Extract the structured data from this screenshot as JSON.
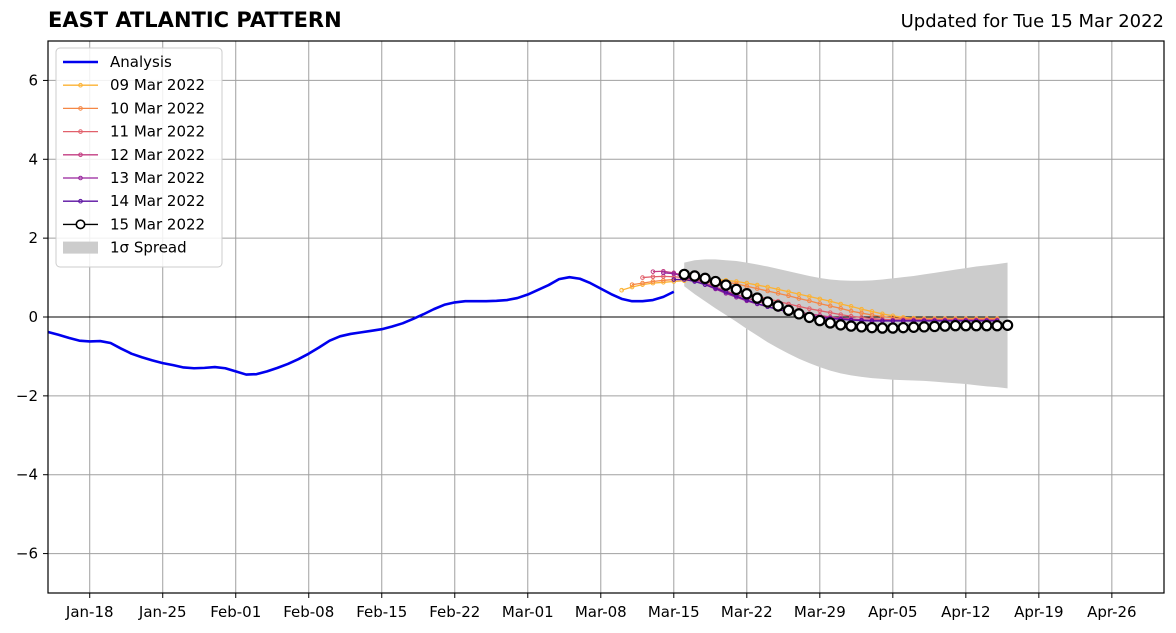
{
  "header": {
    "title": "EAST ATLANTIC PATTERN",
    "updated": "Updated for Tue 15 Mar 2022"
  },
  "chart_data": {
    "type": "line",
    "title": "EAST ATLANTIC PATTERN",
    "subtitle": "Updated for Tue 15 Mar 2022",
    "xlabel": "",
    "ylabel": "",
    "ylim": [
      -7,
      7
    ],
    "xlim": [
      "2022-01-14",
      "2022-05-01"
    ],
    "yticks": [
      -6,
      -4,
      -2,
      0,
      2,
      4,
      6
    ],
    "ytick_labels": [
      "−6",
      "−4",
      "−2",
      "0",
      "2",
      "4",
      "6"
    ],
    "xticks": [
      "2022-01-18",
      "2022-01-25",
      "2022-02-01",
      "2022-02-08",
      "2022-02-15",
      "2022-02-22",
      "2022-03-01",
      "2022-03-08",
      "2022-03-15",
      "2022-03-22",
      "2022-03-29",
      "2022-04-05",
      "2022-04-12",
      "2022-04-19",
      "2022-04-26"
    ],
    "xtick_labels": [
      "Jan-18",
      "Jan-25",
      "Feb-01",
      "Feb-08",
      "Feb-15",
      "Feb-22",
      "Mar-01",
      "Mar-08",
      "Mar-15",
      "Mar-22",
      "Mar-29",
      "Apr-05",
      "Apr-12",
      "Apr-19",
      "Apr-26"
    ],
    "grid": true,
    "legend_position": "top-left",
    "series": [
      {
        "name": "Analysis",
        "color": "#0000ee",
        "start": "2022-01-14",
        "values": [
          -0.38,
          -0.45,
          -0.53,
          -0.6,
          -0.62,
          -0.61,
          -0.66,
          -0.8,
          -0.93,
          -1.02,
          -1.1,
          -1.17,
          -1.22,
          -1.28,
          -1.3,
          -1.29,
          -1.27,
          -1.3,
          -1.38,
          -1.46,
          -1.45,
          -1.38,
          -1.29,
          -1.19,
          -1.07,
          -0.93,
          -0.77,
          -0.6,
          -0.49,
          -0.43,
          -0.39,
          -0.35,
          -0.31,
          -0.24,
          -0.16,
          -0.05,
          0.07,
          0.2,
          0.31,
          0.37,
          0.4,
          0.4,
          0.4,
          0.41,
          0.43,
          0.48,
          0.57,
          0.69,
          0.81,
          0.96,
          1.01,
          0.97,
          0.86,
          0.72,
          0.58,
          0.46,
          0.4,
          0.4,
          0.43,
          0.51,
          0.64
        ]
      },
      {
        "name": "09 Mar 2022",
        "color": "#fcb233",
        "start": "2022-03-10",
        "values": [
          0.68,
          0.76,
          0.82,
          0.86,
          0.88,
          0.9,
          0.92,
          0.94,
          0.95,
          0.95,
          0.93,
          0.9,
          0.86,
          0.81,
          0.76,
          0.7,
          0.64,
          0.58,
          0.52,
          0.46,
          0.4,
          0.33,
          0.27,
          0.2,
          0.14,
          0.08,
          0.03,
          -0.01,
          -0.03,
          -0.04,
          -0.04,
          -0.04,
          -0.04,
          -0.04,
          -0.04,
          -0.04,
          -0.04
        ]
      },
      {
        "name": "10 Mar 2022",
        "color": "#f58745",
        "start": "2022-03-11",
        "values": [
          0.82,
          0.86,
          0.9,
          0.93,
          0.95,
          0.96,
          0.96,
          0.95,
          0.93,
          0.89,
          0.84,
          0.78,
          0.72,
          0.66,
          0.6,
          0.54,
          0.47,
          0.41,
          0.34,
          0.28,
          0.22,
          0.15,
          0.1,
          0.05,
          0.01,
          -0.02,
          -0.04,
          -0.05,
          -0.05,
          -0.05,
          -0.05,
          -0.05,
          -0.05,
          -0.05,
          -0.05,
          -0.05
        ]
      },
      {
        "name": "11 Mar 2022",
        "color": "#e1606b",
        "start": "2022-03-12",
        "values": [
          1.0,
          1.02,
          1.03,
          1.02,
          1.0,
          0.96,
          0.9,
          0.83,
          0.76,
          0.68,
          0.6,
          0.53,
          0.46,
          0.4,
          0.33,
          0.27,
          0.21,
          0.16,
          0.11,
          0.06,
          0.02,
          -0.01,
          -0.04,
          -0.06,
          -0.07,
          -0.07,
          -0.07,
          -0.07,
          -0.07,
          -0.07,
          -0.07,
          -0.07,
          -0.07,
          -0.07,
          -0.07
        ]
      },
      {
        "name": "12 Mar 2022",
        "color": "#c33d82",
        "start": "2022-03-13",
        "values": [
          1.15,
          1.16,
          1.12,
          1.05,
          0.96,
          0.86,
          0.76,
          0.66,
          0.57,
          0.48,
          0.4,
          0.32,
          0.25,
          0.19,
          0.13,
          0.08,
          0.04,
          0.0,
          -0.03,
          -0.05,
          -0.07,
          -0.08,
          -0.09,
          -0.09,
          -0.09,
          -0.09,
          -0.09,
          -0.09,
          -0.09,
          -0.09,
          -0.09,
          -0.09,
          -0.09,
          -0.09
        ]
      },
      {
        "name": "13 Mar 2022",
        "color": "#96229c",
        "start": "2022-03-14",
        "values": [
          1.12,
          1.1,
          1.02,
          0.92,
          0.82,
          0.71,
          0.6,
          0.5,
          0.41,
          0.33,
          0.26,
          0.19,
          0.13,
          0.08,
          0.04,
          0.0,
          -0.03,
          -0.05,
          -0.07,
          -0.08,
          -0.09,
          -0.09,
          -0.09,
          -0.09,
          -0.09,
          -0.09,
          -0.09,
          -0.09,
          -0.09,
          -0.09,
          -0.09,
          -0.09,
          -0.09
        ]
      },
      {
        "name": "14 Mar 2022",
        "color": "#5a0fa0",
        "start": "2022-03-15",
        "values": [
          0.95,
          0.95,
          0.9,
          0.82,
          0.73,
          0.63,
          0.53,
          0.43,
          0.34,
          0.26,
          0.19,
          0.13,
          0.08,
          0.03,
          -0.01,
          -0.04,
          -0.06,
          -0.08,
          -0.09,
          -0.1,
          -0.1,
          -0.1,
          -0.1,
          -0.1,
          -0.1,
          -0.1,
          -0.1,
          -0.1,
          -0.1,
          -0.1,
          -0.1,
          -0.1
        ]
      },
      {
        "name": "15 Mar 2022",
        "color": "#000000",
        "start": "2022-03-16",
        "values": [
          1.08,
          1.04,
          0.98,
          0.9,
          0.81,
          0.7,
          0.59,
          0.48,
          0.38,
          0.28,
          0.17,
          0.08,
          -0.01,
          -0.09,
          -0.15,
          -0.2,
          -0.23,
          -0.25,
          -0.27,
          -0.28,
          -0.28,
          -0.27,
          -0.26,
          -0.25,
          -0.24,
          -0.23,
          -0.22,
          -0.22,
          -0.22,
          -0.22,
          -0.22,
          -0.21
        ]
      }
    ],
    "spread": {
      "name": "1σ Spread",
      "color": "#cccccc",
      "start": "2022-03-16",
      "upper": [
        1.38,
        1.44,
        1.46,
        1.46,
        1.44,
        1.42,
        1.38,
        1.33,
        1.28,
        1.22,
        1.16,
        1.1,
        1.04,
        0.99,
        0.95,
        0.93,
        0.92,
        0.92,
        0.93,
        0.95,
        0.98,
        1.01,
        1.04,
        1.08,
        1.12,
        1.16,
        1.2,
        1.24,
        1.28,
        1.31,
        1.34,
        1.38
      ],
      "lower": [
        0.78,
        0.58,
        0.4,
        0.22,
        0.05,
        -0.12,
        -0.3,
        -0.47,
        -0.64,
        -0.79,
        -0.93,
        -1.06,
        -1.17,
        -1.27,
        -1.36,
        -1.43,
        -1.48,
        -1.52,
        -1.55,
        -1.57,
        -1.59,
        -1.6,
        -1.61,
        -1.62,
        -1.64,
        -1.66,
        -1.68,
        -1.7,
        -1.73,
        -1.76,
        -1.78,
        -1.81
      ]
    }
  }
}
